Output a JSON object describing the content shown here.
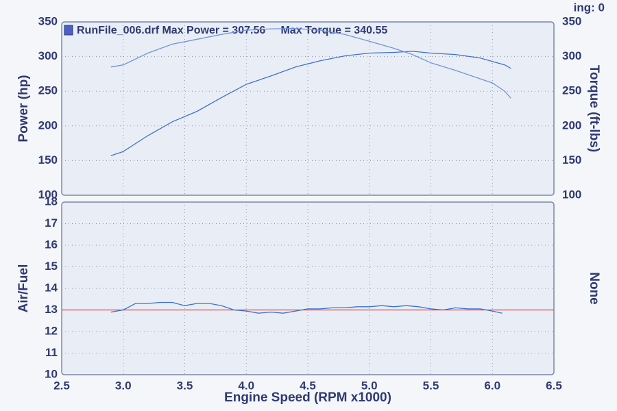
{
  "corner_text": "ing: 0",
  "chart_data": [
    {
      "type": "line",
      "title": "RunFile_006.drf Max Power = 307.56     Max Torque = 340.55",
      "ylabel": "Power (hp)",
      "y2label": "Torque (ft-lbs)",
      "xlim": [
        2.5,
        6.5
      ],
      "ylim": [
        100,
        350
      ],
      "yticks": [
        100,
        150,
        200,
        250,
        300,
        350
      ],
      "y2lim": [
        100,
        350
      ],
      "y2ticks": [
        100,
        150,
        200,
        250,
        300,
        350
      ],
      "grid": true,
      "x": [
        2.9,
        3.0,
        3.2,
        3.4,
        3.6,
        3.8,
        4.0,
        4.2,
        4.4,
        4.6,
        4.8,
        5.0,
        5.2,
        5.35,
        5.5,
        5.7,
        5.9,
        6.0,
        6.1,
        6.15
      ],
      "series": [
        {
          "color": "#3f6fd0",
          "values": [
            157,
            163,
            186,
            206,
            221,
            241,
            260,
            272,
            285,
            294,
            301,
            305,
            306,
            307.56,
            305,
            303,
            298,
            293,
            288,
            283
          ]
        },
        {
          "color": "#6f94dc",
          "axis": "y2",
          "values": [
            285,
            288,
            305,
            318,
            325,
            332,
            338,
            340,
            340.55,
            338,
            332,
            322,
            312,
            303,
            291,
            280,
            268,
            262,
            250,
            240
          ]
        }
      ]
    },
    {
      "type": "line",
      "ylabel": "Air/Fuel",
      "y2label": "None",
      "xlabel": "Engine Speed (RPM x1000)",
      "xlim": [
        2.5,
        6.5
      ],
      "xticks": [
        2.5,
        {
          "value": 3,
          "label": "3.0"
        },
        3.5,
        {
          "value": 4,
          "label": "4.0"
        },
        4.5,
        {
          "value": 5,
          "label": "5.0"
        },
        5.5,
        {
          "value": 6,
          "label": "6.0"
        },
        6.5
      ],
      "ylim": [
        10,
        18
      ],
      "yticks": [
        10,
        11,
        12,
        13,
        14,
        15,
        16,
        17,
        18
      ],
      "grid": true,
      "reference_line": {
        "value": 13,
        "color": "#e04040"
      },
      "x": [
        2.9,
        3.0,
        3.1,
        3.2,
        3.3,
        3.4,
        3.5,
        3.6,
        3.7,
        3.8,
        3.9,
        4.0,
        4.1,
        4.2,
        4.3,
        4.4,
        4.5,
        4.6,
        4.7,
        4.8,
        4.9,
        5.0,
        5.1,
        5.2,
        5.3,
        5.4,
        5.5,
        5.6,
        5.7,
        5.8,
        5.9,
        6.0,
        6.08
      ],
      "series": [
        {
          "color": "#3f6fd0",
          "values": [
            12.9,
            13.0,
            13.3,
            13.3,
            13.35,
            13.35,
            13.2,
            13.3,
            13.3,
            13.2,
            13.0,
            12.95,
            12.85,
            12.9,
            12.85,
            12.95,
            13.05,
            13.05,
            13.1,
            13.1,
            13.15,
            13.15,
            13.2,
            13.15,
            13.2,
            13.15,
            13.05,
            13.0,
            13.1,
            13.05,
            13.05,
            12.95,
            12.85
          ]
        }
      ]
    }
  ]
}
